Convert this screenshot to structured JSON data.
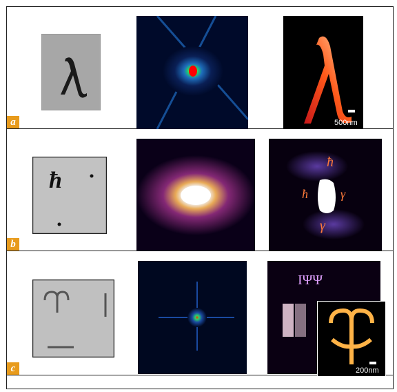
{
  "panels": [
    {
      "label": "a",
      "scale_bar": "500nm"
    },
    {
      "label": "b",
      "scale_bar": ""
    },
    {
      "label": "c",
      "scale_bar": "200nm"
    }
  ]
}
